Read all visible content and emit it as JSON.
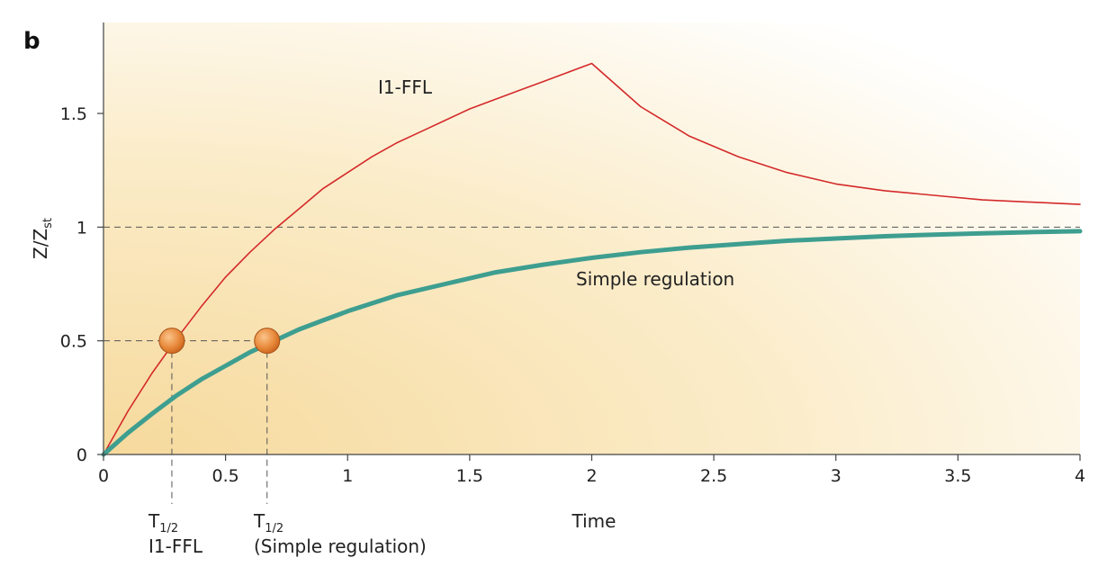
{
  "panel_letter": "b",
  "chart_data": {
    "type": "line",
    "xlabel": "Time",
    "ylabel_main": "Z/Z",
    "ylabel_sub": "st",
    "xlim": [
      0,
      4
    ],
    "ylim": [
      0,
      1.9
    ],
    "x_ticks": [
      0,
      0.5,
      1,
      1.5,
      2,
      2.5,
      3,
      3.5,
      4
    ],
    "x_tick_labels": [
      "0",
      "0.5",
      "1",
      "1.5",
      "2",
      "2.5",
      "3",
      "3.5",
      "4"
    ],
    "y_ticks": [
      0,
      0.5,
      1,
      1.5
    ],
    "y_tick_labels": [
      "0",
      "0.5",
      "1",
      "1.5"
    ],
    "reference_line_y": 1,
    "series": [
      {
        "name": "I1-FFL",
        "color": "#d42a2a",
        "x": [
          0,
          0.1,
          0.2,
          0.3,
          0.4,
          0.5,
          0.6,
          0.7,
          0.8,
          0.9,
          1.0,
          1.1,
          1.2,
          1.3,
          1.4,
          1.5,
          1.6,
          1.7,
          1.8,
          1.9,
          2.0,
          2.2,
          2.4,
          2.6,
          2.8,
          3.0,
          3.2,
          3.4,
          3.6,
          3.8,
          4.0
        ],
        "y": [
          0,
          0.19,
          0.36,
          0.51,
          0.65,
          0.78,
          0.89,
          0.99,
          1.08,
          1.17,
          1.24,
          1.31,
          1.37,
          1.42,
          1.47,
          1.52,
          1.56,
          1.6,
          1.64,
          1.68,
          1.72,
          1.53,
          1.4,
          1.31,
          1.24,
          1.19,
          1.16,
          1.14,
          1.12,
          1.11,
          1.1
        ]
      },
      {
        "name": "Simple regulation",
        "color": "#3e9e90",
        "x": [
          0,
          0.1,
          0.2,
          0.3,
          0.4,
          0.5,
          0.6,
          0.7,
          0.8,
          0.9,
          1.0,
          1.2,
          1.4,
          1.6,
          1.8,
          2.0,
          2.2,
          2.4,
          2.6,
          2.8,
          3.0,
          3.2,
          3.4,
          3.6,
          3.8,
          4.0
        ],
        "y": [
          0,
          0.095,
          0.18,
          0.26,
          0.33,
          0.39,
          0.45,
          0.5,
          0.55,
          0.59,
          0.63,
          0.7,
          0.75,
          0.8,
          0.835,
          0.865,
          0.89,
          0.91,
          0.925,
          0.94,
          0.95,
          0.96,
          0.967,
          0.973,
          0.978,
          0.982
        ]
      }
    ],
    "half_times": [
      {
        "series": "I1-FFL",
        "x": 0.28,
        "y": 0.5,
        "label_main": "T",
        "label_sub": "1/2",
        "caption": "I1-FFL"
      },
      {
        "series": "Simple regulation",
        "x": 0.67,
        "y": 0.5,
        "label_main": "T",
        "label_sub": "1/2",
        "caption": "(Simple regulation)"
      }
    ],
    "marker_color": "#e07a2e",
    "background_gradient": [
      "#f8dfa8",
      "#ffffff"
    ]
  }
}
